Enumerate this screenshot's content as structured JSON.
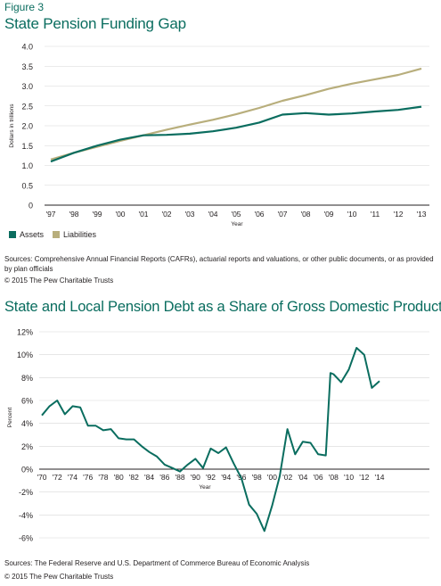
{
  "figure_label": "Figure 3",
  "footer1": {
    "source": "Sources: Comprehensive Annual Financial Reports (CAFRs), actuarial reports and valuations, or other public documents, or as provided by plan officials",
    "copyright": "© 2015 The Pew Charitable Trusts"
  },
  "footer2": {
    "source": "Sources: The Federal Reserve and U.S. Department of Commerce Bureau of Economic Analysis",
    "copyright": "© 2015 The Pew Charitable Trusts"
  },
  "chart_data": [
    {
      "type": "line",
      "title": "State Pension Funding Gap",
      "xlabel": "Year",
      "ylabel": "Dollars in trillions",
      "ylim": [
        0,
        4
      ],
      "yticks": [
        "0",
        "0.5",
        "1.0",
        "1.5",
        "2.0",
        "2.5",
        "3.0",
        "3.5",
        "4.0"
      ],
      "xticks": [
        "'97",
        "'98",
        "'99",
        "'00",
        "'01",
        "'02",
        "'03",
        "'04",
        "'05",
        "'06",
        "'07",
        "'08",
        "'09",
        "'10",
        "'11",
        "'12",
        "'13"
      ],
      "x": [
        1997,
        1998,
        1999,
        2000,
        2001,
        2002,
        2003,
        2004,
        2005,
        2006,
        2007,
        2008,
        2009,
        2010,
        2011,
        2012,
        2013
      ],
      "grid": true,
      "legend_position": "bottom-left",
      "series": [
        {
          "name": "Assets",
          "color": "#0a6d5f",
          "values": [
            1.1,
            1.32,
            1.5,
            1.65,
            1.76,
            1.77,
            1.8,
            1.86,
            1.95,
            2.08,
            2.28,
            2.32,
            2.28,
            2.31,
            2.36,
            2.4,
            2.48
          ]
        },
        {
          "name": "Liabilities",
          "color": "#b8ae7c",
          "values": [
            1.15,
            1.32,
            1.47,
            1.62,
            1.76,
            1.9,
            2.03,
            2.15,
            2.29,
            2.45,
            2.63,
            2.77,
            2.93,
            3.06,
            3.17,
            3.28,
            3.44
          ]
        }
      ]
    },
    {
      "type": "line",
      "title": "State and Local Pension Debt as a Share of Gross Domestic Product",
      "xlabel": "Year",
      "ylabel": "Percent",
      "ylim": [
        -6,
        12
      ],
      "yticks": [
        "12%",
        "10%",
        "8%",
        "6%",
        "4%",
        "2%",
        "0%",
        "-2%",
        "-4%",
        "-6%"
      ],
      "xticks": [
        "'70",
        "'72",
        "'74",
        "'76",
        "'78",
        "'80",
        "'82",
        "'84",
        "'86",
        "'88",
        "'90",
        "'92",
        "'94",
        "'96",
        "'98",
        "'00",
        "'02",
        "'04",
        "'06",
        "'08",
        "'10",
        "'12",
        "'14"
      ],
      "grid": true,
      "series": [
        {
          "name": "",
          "color": "#0a6d5f",
          "x": [
            1970,
            1971,
            1972,
            1973,
            1974,
            1975,
            1976,
            1977,
            1978,
            1979,
            1980,
            1981,
            1982,
            1983,
            1984,
            1985,
            1986,
            1987,
            1988,
            1989,
            1990,
            1991,
            1992,
            1993,
            1994,
            1995,
            1996,
            1997,
            1998,
            1999,
            2000,
            2001,
            2002,
            2003,
            2004,
            2005,
            2006,
            2007,
            2007.6,
            2008,
            2009,
            2010,
            2011,
            2012,
            2013,
            2014
          ],
          "values": [
            4.7,
            5.5,
            6.0,
            4.8,
            5.5,
            5.4,
            3.8,
            3.8,
            3.4,
            3.5,
            2.7,
            2.6,
            2.6,
            2.0,
            1.5,
            1.1,
            0.4,
            0.1,
            -0.2,
            0.4,
            0.9,
            0.1,
            1.8,
            1.4,
            1.9,
            0.5,
            -0.8,
            -3.1,
            -3.9,
            -5.4,
            -3.2,
            -0.6,
            3.5,
            1.3,
            2.4,
            2.3,
            1.3,
            1.2,
            8.4,
            8.3,
            7.6,
            8.7,
            10.6,
            10.0,
            7.1,
            7.7
          ]
        }
      ]
    }
  ]
}
